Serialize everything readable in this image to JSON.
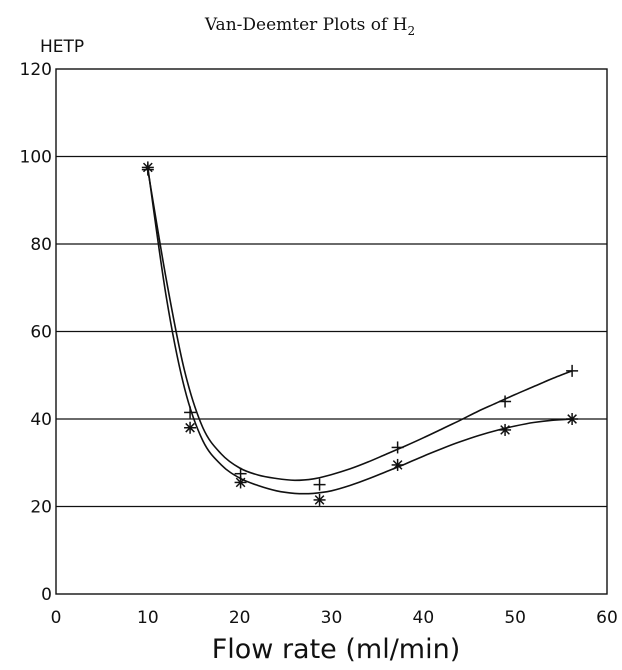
{
  "chart_data": {
    "type": "line",
    "title": "Van-Deemter Plots of H",
    "title_subscript": "2",
    "xlabel": "Flow rate (ml/min)",
    "ylabel": "HETP",
    "xlim": [
      0,
      60
    ],
    "ylim": [
      0,
      120
    ],
    "x_ticks": [
      0,
      10,
      20,
      30,
      40,
      50,
      60
    ],
    "y_ticks": [
      0,
      20,
      40,
      60,
      80,
      100,
      120
    ],
    "grid": "horizontal",
    "legend": "none",
    "series": [
      {
        "marker": "plus",
        "points": [
          {
            "x": 10,
            "y": 97
          },
          {
            "x": 14.6,
            "y": 41.5
          },
          {
            "x": 20.1,
            "y": 27.5
          },
          {
            "x": 28.7,
            "y": 25
          },
          {
            "x": 37.2,
            "y": 33.5
          },
          {
            "x": 48.9,
            "y": 44
          },
          {
            "x": 56.2,
            "y": 51
          }
        ],
        "curve": [
          [
            10,
            97
          ],
          [
            12,
            72
          ],
          [
            14,
            51
          ],
          [
            16,
            38
          ],
          [
            18,
            32
          ],
          [
            20,
            28.8
          ],
          [
            22,
            27.2
          ],
          [
            24,
            26.4
          ],
          [
            26,
            26
          ],
          [
            28,
            26.3
          ],
          [
            30,
            27.3
          ],
          [
            32,
            28.6
          ],
          [
            34,
            30.2
          ],
          [
            36,
            32
          ],
          [
            38,
            33.8
          ],
          [
            40,
            35.7
          ],
          [
            42,
            37.7
          ],
          [
            44,
            39.7
          ],
          [
            46,
            41.8
          ],
          [
            48,
            43.7
          ],
          [
            50,
            45.6
          ],
          [
            52,
            47.4
          ],
          [
            54,
            49.2
          ],
          [
            56.2,
            51
          ]
        ]
      },
      {
        "marker": "asterisk",
        "points": [
          {
            "x": 10,
            "y": 97.5
          },
          {
            "x": 14.6,
            "y": 38
          },
          {
            "x": 20.1,
            "y": 25.5
          },
          {
            "x": 28.7,
            "y": 21.5
          },
          {
            "x": 37.2,
            "y": 29.5
          },
          {
            "x": 48.9,
            "y": 37.5
          },
          {
            "x": 56.2,
            "y": 40
          }
        ],
        "curve": [
          [
            10,
            97.5
          ],
          [
            12,
            68
          ],
          [
            14,
            47
          ],
          [
            16,
            35
          ],
          [
            18,
            29.5
          ],
          [
            20,
            26.5
          ],
          [
            22,
            24.8
          ],
          [
            24,
            23.6
          ],
          [
            26,
            23
          ],
          [
            28,
            23
          ],
          [
            30,
            23.6
          ],
          [
            32,
            24.8
          ],
          [
            34,
            26.3
          ],
          [
            36,
            28
          ],
          [
            38,
            29.7
          ],
          [
            40,
            31.5
          ],
          [
            42,
            33.2
          ],
          [
            44,
            34.8
          ],
          [
            46,
            36.2
          ],
          [
            48,
            37.4
          ],
          [
            50,
            38.4
          ],
          [
            52,
            39.2
          ],
          [
            54,
            39.7
          ],
          [
            56.2,
            40
          ]
        ]
      }
    ]
  }
}
